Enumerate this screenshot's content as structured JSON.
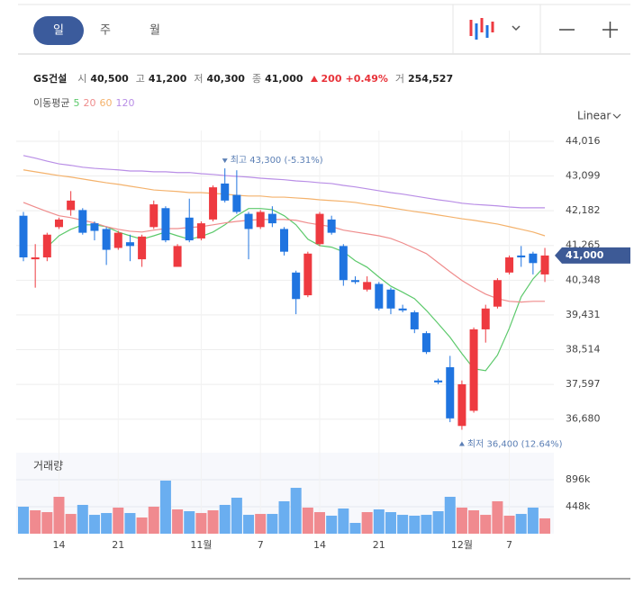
{
  "header": {
    "tabs": [
      "일",
      "주",
      "월"
    ],
    "stock": "GS건설",
    "summary": [
      {
        "label": "시",
        "value": "40,500"
      },
      {
        "label": "고",
        "value": "41,200"
      },
      {
        "label": "저",
        "value": "40,300"
      },
      {
        "label": "종",
        "value": "41,000"
      }
    ],
    "change": "200",
    "change_pct": "+0.49%",
    "volume_label": "거",
    "volume": "254,527",
    "ma_label": "이동평균",
    "scale": "Linear"
  },
  "chart_data": {
    "type": "candlestick",
    "categories": [
      null,
      null,
      null,
      "14",
      null,
      null,
      null,
      null,
      "21",
      null,
      null,
      null,
      null,
      null,
      null,
      "11월",
      null,
      null,
      null,
      null,
      "7",
      null,
      null,
      null,
      null,
      "14",
      null,
      null,
      null,
      null,
      "21",
      null,
      null,
      null,
      null,
      null,
      null,
      "12월",
      null,
      null,
      null,
      "7",
      null,
      null,
      null
    ],
    "open": [
      42050,
      40900,
      40950,
      41750,
      42200,
      42200,
      41850,
      41700,
      41200,
      41350,
      40900,
      41750,
      42250,
      40700,
      42000,
      41450,
      41950,
      42900,
      42600,
      42100,
      41750,
      42100,
      41700,
      40550,
      39950,
      41300,
      41950,
      41250,
      40350,
      40100,
      40250,
      40100,
      39600,
      39500,
      38950,
      37700,
      38050,
      36500,
      36900,
      39050,
      39650,
      40550,
      41000,
      41050,
      40500
    ],
    "high": [
      42150,
      41300,
      41600,
      42000,
      42700,
      42250,
      41900,
      41750,
      41650,
      41550,
      41550,
      42450,
      42300,
      41300,
      42500,
      41900,
      42850,
      43300,
      43250,
      42150,
      42200,
      42300,
      41750,
      40600,
      41100,
      42150,
      42050,
      41300,
      40450,
      40450,
      40300,
      40150,
      39700,
      39550,
      39000,
      37750,
      38350,
      37700,
      39100,
      39700,
      40400,
      41000,
      41250,
      41100,
      41200
    ],
    "low": [
      40850,
      40150,
      40850,
      41700,
      42050,
      41550,
      41400,
      40750,
      41150,
      40850,
      40700,
      41700,
      41350,
      40700,
      41350,
      41400,
      41900,
      42400,
      42100,
      40900,
      41700,
      41750,
      41000,
      39450,
      39900,
      41250,
      41550,
      40200,
      40250,
      40050,
      39550,
      39450,
      39500,
      38950,
      38400,
      37600,
      36600,
      36400,
      36850,
      38700,
      39600,
      40500,
      40700,
      40500,
      40300
    ],
    "close": [
      40950,
      40950,
      41550,
      41950,
      42450,
      41600,
      41650,
      41150,
      41600,
      41250,
      41500,
      42350,
      41400,
      41250,
      41400,
      41850,
      42800,
      42450,
      42150,
      41700,
      42150,
      41850,
      41100,
      39850,
      41050,
      42100,
      41600,
      40350,
      40300,
      40300,
      39600,
      39600,
      39550,
      39050,
      38450,
      37650,
      36700,
      37600,
      39050,
      39600,
      40350,
      40950,
      40950,
      40800,
      41000
    ],
    "up_color": "#ee3a40",
    "down_color": "#1f74e0",
    "series": [
      {
        "name": "5",
        "color": "#5cc96b",
        "values": [
          null,
          null,
          41220,
          41520,
          41690,
          41810,
          41810,
          41760,
          41620,
          41520,
          41430,
          41520,
          41620,
          41520,
          41430,
          41500,
          41620,
          41810,
          42050,
          42240,
          42240,
          42210,
          42050,
          41810,
          41430,
          41260,
          41220,
          41100,
          40860,
          40690,
          40430,
          40190,
          40030,
          39860,
          39550,
          39200,
          38840,
          38410,
          38010,
          37960,
          38370,
          39080,
          39910,
          40380,
          40720
        ]
      },
      {
        "name": "20",
        "color": "#ef8c8c",
        "values": [
          42400,
          42280,
          42160,
          42050,
          42000,
          41930,
          41860,
          41760,
          41690,
          41640,
          41620,
          41670,
          41710,
          41710,
          41740,
          41760,
          41810,
          41860,
          41900,
          41930,
          41950,
          41950,
          41950,
          41930,
          41860,
          41810,
          41760,
          41670,
          41620,
          41570,
          41520,
          41450,
          41330,
          41190,
          41050,
          40810,
          40570,
          40340,
          40150,
          39980,
          39860,
          39790,
          39770,
          39790,
          39790
        ]
      },
      {
        "name": "60",
        "color": "#f4b26c",
        "values": [
          43260,
          43210,
          43160,
          43110,
          43070,
          43020,
          42970,
          42920,
          42880,
          42830,
          42780,
          42730,
          42710,
          42690,
          42660,
          42660,
          42640,
          42620,
          42590,
          42570,
          42570,
          42540,
          42540,
          42520,
          42500,
          42470,
          42450,
          42430,
          42400,
          42350,
          42310,
          42260,
          42210,
          42160,
          42120,
          42070,
          42020,
          41970,
          41930,
          41880,
          41830,
          41760,
          41690,
          41620,
          41520
        ]
      },
      {
        "name": "120",
        "color": "#b98ee6",
        "values": [
          43640,
          43570,
          43490,
          43420,
          43380,
          43330,
          43300,
          43280,
          43260,
          43230,
          43230,
          43210,
          43210,
          43190,
          43190,
          43160,
          43140,
          43110,
          43090,
          43070,
          43040,
          43020,
          43000,
          42970,
          42950,
          42920,
          42900,
          42850,
          42810,
          42760,
          42710,
          42660,
          42620,
          42570,
          42520,
          42470,
          42430,
          42380,
          42350,
          42330,
          42310,
          42280,
          42260,
          42260,
          42260
        ]
      }
    ],
    "ylim": [
      36340,
      44300
    ],
    "yticks": [
      {
        "value": 44016,
        "label": "44,016"
      },
      {
        "value": 43099,
        "label": "43,099"
      },
      {
        "value": 42182,
        "label": "42,182"
      },
      {
        "value": 41265,
        "label": "41,265"
      },
      {
        "value": 40348,
        "label": "40,348"
      },
      {
        "value": 39431,
        "label": "39,431"
      },
      {
        "value": 38514,
        "label": "38,514"
      },
      {
        "value": 37597,
        "label": "37,597"
      },
      {
        "value": 36680,
        "label": "36,680"
      }
    ],
    "grid": true,
    "annotations": [
      {
        "text": "최고 43,300 (-5.31%)",
        "color": "#5b7fb5"
      },
      {
        "text": "최저 36,400 (12.64%)",
        "color": "#5b7fb5"
      }
    ],
    "last_label": "41,000",
    "last_color": "#3d5a96",
    "volume": {
      "title": "거래량",
      "up_color": "#f08a8f",
      "down_color": "#6aaef0",
      "values": [
        448000,
        388000,
        358000,
        612000,
        328000,
        478000,
        313000,
        343000,
        433000,
        343000,
        269000,
        448000,
        881000,
        403000,
        373000,
        343000,
        388000,
        478000,
        597000,
        313000,
        328000,
        328000,
        538000,
        761000,
        433000,
        358000,
        299000,
        418000,
        179000,
        358000,
        403000,
        358000,
        313000,
        299000,
        313000,
        373000,
        612000,
        433000,
        388000,
        313000,
        538000,
        299000,
        328000,
        433000,
        254527
      ],
      "ylim": [
        0,
        1314000
      ],
      "yticks": [
        {
          "value": 896000,
          "label": "896k"
        },
        {
          "value": 448000,
          "label": "448k"
        }
      ]
    }
  }
}
